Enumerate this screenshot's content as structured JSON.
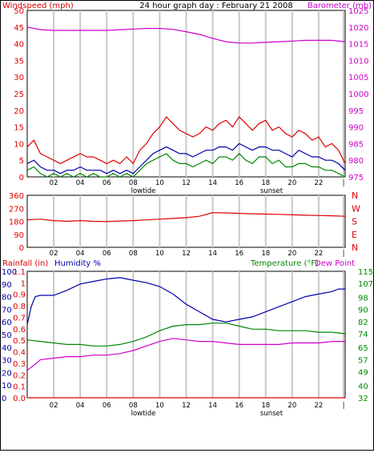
{
  "chart_data": [
    {
      "type": "line",
      "title": "24 hour graph day : February 21 2008",
      "left_axis_label": "Windspeed (mph)",
      "right_axis_label": "Barometer (mb)",
      "x_ticks": [
        "02",
        "04",
        "06",
        "08",
        "10",
        "12",
        "14",
        "16",
        "18",
        "20",
        "22",
        "|"
      ],
      "x_annotations": [
        "lowtide",
        "sunset"
      ],
      "y_left": {
        "min": 0,
        "max": 50,
        "ticks": [
          0,
          5,
          10,
          15,
          20,
          25,
          30,
          35,
          40,
          45,
          50
        ]
      },
      "y_right": {
        "min": 975,
        "max": 1025,
        "ticks": [
          975,
          980,
          985,
          990,
          995,
          1000,
          1005,
          1010,
          1015,
          1020,
          1025
        ]
      },
      "series": [
        {
          "axis": "right",
          "color": "#cc00cc",
          "x": [
            0,
            1,
            2,
            3,
            4,
            5,
            6,
            7,
            8,
            9,
            10,
            11,
            12,
            13,
            14,
            15,
            16,
            17,
            18,
            19,
            20,
            21,
            22,
            23,
            24
          ],
          "values": [
            1020,
            1019.2,
            1019,
            1019,
            1019,
            1019,
            1019,
            1019.2,
            1019.4,
            1019.6,
            1019.6,
            1019.3,
            1018.6,
            1017.8,
            1016.6,
            1015.6,
            1015.2,
            1015.2,
            1015.4,
            1015.6,
            1015.8,
            1016,
            1016,
            1016,
            1015.6
          ]
        },
        {
          "axis": "left",
          "color": "#dd0000",
          "x": [
            0,
            0.5,
            1,
            1.5,
            2,
            2.5,
            3,
            3.5,
            4,
            4.5,
            5,
            5.5,
            6,
            6.5,
            7,
            7.5,
            8,
            8.5,
            9,
            9.5,
            10,
            10.5,
            11,
            11.5,
            12,
            12.5,
            13,
            13.5,
            14,
            14.5,
            15,
            15.5,
            16,
            16.5,
            17,
            17.5,
            18,
            18.5,
            19,
            19.5,
            20,
            20.5,
            21,
            21.5,
            22,
            22.5,
            23,
            23.5,
            24
          ],
          "values": [
            9,
            11,
            7,
            6,
            5,
            4,
            5,
            6,
            7,
            6,
            6,
            5,
            4,
            5,
            4,
            6,
            4,
            8,
            10,
            13,
            15,
            18,
            16,
            14,
            13,
            12,
            13,
            15,
            14,
            16,
            17,
            15,
            18,
            16,
            14,
            16,
            17,
            14,
            15,
            13,
            12,
            14,
            13,
            11,
            12,
            9,
            10,
            8,
            4
          ]
        },
        {
          "axis": "left",
          "color": "#0000aa",
          "x": [
            0,
            0.5,
            1,
            1.5,
            2,
            2.5,
            3,
            3.5,
            4,
            4.5,
            5,
            5.5,
            6,
            6.5,
            7,
            7.5,
            8,
            8.5,
            9,
            9.5,
            10,
            10.5,
            11,
            11.5,
            12,
            12.5,
            13,
            13.5,
            14,
            14.5,
            15,
            15.5,
            16,
            16.5,
            17,
            17.5,
            18,
            18.5,
            19,
            19.5,
            20,
            20.5,
            21,
            21.5,
            22,
            22.5,
            23,
            23.5,
            24
          ],
          "values": [
            4,
            5,
            3,
            2,
            2,
            1,
            2,
            2,
            3,
            2,
            2,
            2,
            1,
            2,
            1,
            2,
            1,
            3,
            5,
            7,
            8,
            9,
            8,
            7,
            7,
            6,
            7,
            8,
            8,
            9,
            9,
            8,
            10,
            9,
            8,
            9,
            9,
            8,
            8,
            7,
            6,
            8,
            7,
            6,
            6,
            5,
            5,
            4,
            2
          ]
        },
        {
          "axis": "left",
          "color": "#008800",
          "x": [
            0,
            0.5,
            1,
            1.5,
            2,
            2.5,
            3,
            3.5,
            4,
            4.5,
            5,
            5.5,
            6,
            6.5,
            7,
            7.5,
            8,
            8.5,
            9,
            9.5,
            10,
            10.5,
            11,
            11.5,
            12,
            12.5,
            13,
            13.5,
            14,
            14.5,
            15,
            15.5,
            16,
            16.5,
            17,
            17.5,
            18,
            18.5,
            19,
            19.5,
            20,
            20.5,
            21,
            21.5,
            22,
            22.5,
            23,
            23.5,
            24
          ],
          "values": [
            2,
            3,
            1,
            0,
            1,
            0,
            1,
            0,
            1,
            0,
            1,
            0,
            0,
            1,
            0,
            1,
            0,
            2,
            4,
            5,
            6,
            7,
            5,
            4,
            4,
            3,
            4,
            5,
            4,
            6,
            6,
            5,
            7,
            5,
            4,
            6,
            6,
            4,
            5,
            3,
            3,
            4,
            4,
            3,
            3,
            2,
            2,
            1,
            0
          ]
        }
      ]
    },
    {
      "type": "line",
      "right_axis_labels": [
        "N",
        "W",
        "S",
        "E",
        "N"
      ],
      "x_ticks": [
        "02",
        "04",
        "06",
        "08",
        "10",
        "12",
        "14",
        "16",
        "18",
        "20",
        "22",
        "|"
      ],
      "y_left": {
        "min": 0,
        "max": 360,
        "ticks": [
          0,
          90,
          180,
          270,
          360
        ]
      },
      "series": [
        {
          "axis": "left",
          "color": "#dd0000",
          "x": [
            0,
            1,
            2,
            3,
            4,
            5,
            6,
            7,
            8,
            9,
            10,
            11,
            12,
            13,
            14,
            15,
            16,
            17,
            18,
            19,
            20,
            21,
            22,
            23,
            24
          ],
          "values": [
            190,
            195,
            185,
            180,
            185,
            180,
            178,
            182,
            185,
            190,
            195,
            200,
            205,
            215,
            240,
            238,
            235,
            232,
            230,
            228,
            225,
            222,
            220,
            218,
            215
          ]
        }
      ]
    },
    {
      "type": "line",
      "left_axis_label": "Rainfall (in)",
      "left_axis_label2": "Humidity %",
      "right_axis_label": "Temperature (°F)",
      "right_axis_label2": "Dew Point",
      "x_ticks": [
        "02",
        "04",
        "06",
        "08",
        "10",
        "12",
        "14",
        "16",
        "18",
        "20",
        "22",
        "|"
      ],
      "x_annotations": [
        "lowtide",
        "sunset"
      ],
      "y_humidity": {
        "min": 0,
        "max": 100,
        "ticks": [
          0,
          10,
          20,
          30,
          40,
          50,
          60,
          70,
          80,
          90,
          100
        ]
      },
      "y_rain": {
        "min": 0,
        "max": 1.1,
        "ticks": [
          "0.0",
          "0.1",
          "0.2",
          "0.3",
          "0.4",
          "0.5",
          "0.6",
          "0.7",
          "0.8",
          "0.9",
          "1",
          "1.1"
        ]
      },
      "y_temp": {
        "min": 32,
        "max": 115,
        "ticks": [
          32,
          40,
          49,
          57,
          65,
          74,
          82,
          90,
          98,
          107,
          115
        ]
      },
      "series": [
        {
          "axis": "humidity",
          "color": "#0000aa",
          "x": [
            0,
            0.3,
            0.6,
            1,
            2,
            3,
            4,
            5,
            6,
            7,
            8,
            9,
            10,
            11,
            12,
            13,
            14,
            15,
            16,
            17,
            18,
            19,
            20,
            21,
            22,
            23,
            23.5,
            24
          ],
          "values": [
            58,
            72,
            80,
            81,
            81,
            85,
            90,
            92,
            94,
            95,
            93,
            91,
            88,
            82,
            74,
            68,
            62,
            60,
            62,
            64,
            68,
            72,
            76,
            80,
            82,
            84,
            86,
            86
          ]
        },
        {
          "axis": "temp",
          "color": "#008800",
          "x": [
            0,
            1,
            2,
            3,
            4,
            5,
            6,
            7,
            8,
            9,
            10,
            11,
            12,
            13,
            14,
            15,
            16,
            17,
            18,
            19,
            20,
            21,
            22,
            23,
            24
          ],
          "values": [
            70,
            69,
            68,
            67,
            67,
            66,
            66,
            67,
            69,
            72,
            76,
            79,
            80,
            80,
            81,
            81,
            79,
            77,
            77,
            76,
            76,
            76,
            75,
            75,
            74
          ]
        },
        {
          "axis": "temp",
          "color": "#cc00cc",
          "x": [
            0,
            0.3,
            0.6,
            1,
            2,
            3,
            4,
            5,
            6,
            7,
            8,
            9,
            10,
            11,
            12,
            13,
            14,
            15,
            16,
            17,
            18,
            19,
            20,
            21,
            22,
            23,
            24
          ],
          "values": [
            50,
            52,
            54,
            57,
            58,
            59,
            59,
            60,
            60,
            61,
            63,
            66,
            69,
            71,
            70,
            69,
            69,
            68,
            67,
            67,
            67,
            67,
            68,
            68,
            68,
            69,
            69
          ]
        },
        {
          "axis": "rain",
          "color": "#dd0000",
          "x": [
            0,
            24
          ],
          "values": [
            0,
            0
          ]
        }
      ]
    }
  ],
  "colors": {
    "wind": "#dd0000",
    "baro": "#cc00cc",
    "humidity": "#0000aa",
    "temp": "#008800",
    "grid": "#c8c8c8"
  }
}
